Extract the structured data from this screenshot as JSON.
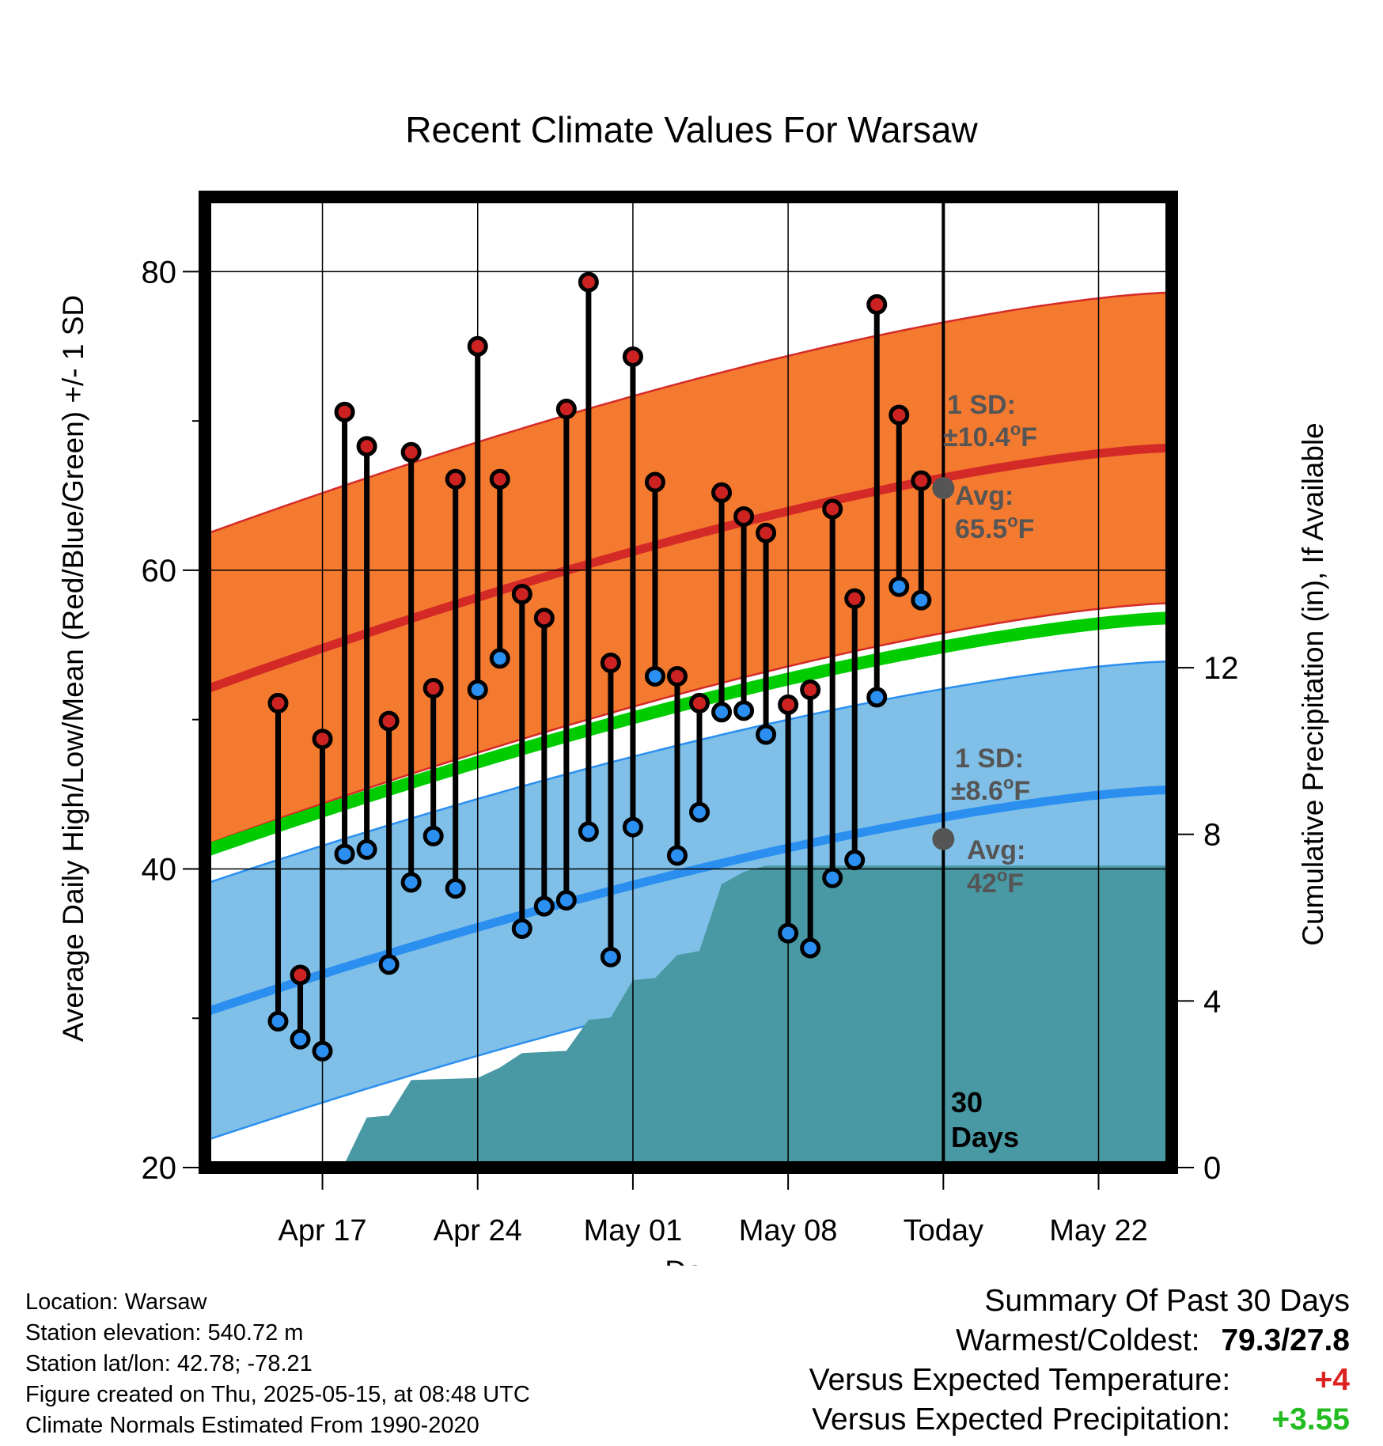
{
  "chart_data": {
    "type": "line",
    "title": "Recent Climate Values For Warsaw",
    "xlabel": "Day",
    "ylabel": "Average Daily High/Low/Mean (Red/Blue/Green) +/- 1 SD",
    "y2label": "Cumulative Precipitation (in), If Available",
    "x_range_days": [
      -33.3,
      10.3
    ],
    "ylim": [
      20,
      85
    ],
    "y2lim": [
      0,
      23.3
    ],
    "x_ticks": [
      {
        "day": -28,
        "label": "Apr 17"
      },
      {
        "day": -21,
        "label": "Apr 24"
      },
      {
        "day": -14,
        "label": "May 01"
      },
      {
        "day": -7,
        "label": "May 08"
      },
      {
        "day": 0,
        "label": "Today"
      },
      {
        "day": 7,
        "label": "May 22"
      }
    ],
    "y_ticks": [
      20,
      40,
      60,
      80
    ],
    "y_minor_ticks": [
      30,
      50,
      70
    ],
    "y2_ticks": [
      0,
      4,
      8,
      12
    ],
    "today_day": 0,
    "window_label": "30\nDays",
    "grid": true,
    "daily": [
      {
        "day": -30,
        "high": 51.1,
        "low": 29.8
      },
      {
        "day": -29,
        "high": 32.9,
        "low": 28.6
      },
      {
        "day": -28,
        "high": 48.7,
        "low": 27.8
      },
      {
        "day": -27,
        "high": 70.6,
        "low": 41.0
      },
      {
        "day": -26,
        "high": 68.3,
        "low": 41.3
      },
      {
        "day": -25,
        "high": 49.9,
        "low": 33.6
      },
      {
        "day": -24,
        "high": 67.9,
        "low": 39.1
      },
      {
        "day": -23,
        "high": 52.1,
        "low": 42.2
      },
      {
        "day": -22,
        "high": 66.1,
        "low": 38.7
      },
      {
        "day": -21,
        "high": 75.0,
        "low": 52.0
      },
      {
        "day": -20,
        "high": 66.1,
        "low": 54.1
      },
      {
        "day": -19,
        "high": 58.4,
        "low": 36.0
      },
      {
        "day": -18,
        "high": 56.8,
        "low": 37.5
      },
      {
        "day": -17,
        "high": 70.8,
        "low": 37.9
      },
      {
        "day": -16,
        "high": 79.3,
        "low": 42.5
      },
      {
        "day": -15,
        "high": 53.8,
        "low": 34.1
      },
      {
        "day": -14,
        "high": 74.3,
        "low": 42.8
      },
      {
        "day": -13,
        "high": 65.9,
        "low": 52.9
      },
      {
        "day": -12,
        "high": 52.9,
        "low": 40.9
      },
      {
        "day": -11,
        "high": 51.1,
        "low": 43.8
      },
      {
        "day": -10,
        "high": 65.2,
        "low": 50.5
      },
      {
        "day": -9,
        "high": 63.6,
        "low": 50.6
      },
      {
        "day": -8,
        "high": 62.5,
        "low": 49.0
      },
      {
        "day": -7,
        "high": 51.0,
        "low": 35.7
      },
      {
        "day": -6,
        "high": 52.0,
        "low": 34.7
      },
      {
        "day": -5,
        "high": 64.1,
        "low": 39.4
      },
      {
        "day": -4,
        "high": 58.1,
        "low": 40.6
      },
      {
        "day": -3,
        "high": 77.8,
        "low": 51.5
      },
      {
        "day": -2,
        "high": 70.4,
        "low": 58.9
      },
      {
        "day": -1,
        "high": 66.0,
        "low": 58.0
      }
    ],
    "normals": {
      "avg_high_start": 52.0,
      "avg_high_end": 68.2,
      "avg_low_start": 30.4,
      "avg_low_end": 45.3,
      "avg_mean_start": 41.2,
      "avg_mean_end": 56.8,
      "sd_high": 10.4,
      "sd_low": 8.6
    },
    "precip_cumulative": [
      {
        "day": -33,
        "v": 0.0
      },
      {
        "day": -30,
        "v": 0.0
      },
      {
        "day": -29,
        "v": 0.05
      },
      {
        "day": -28,
        "v": 0.1
      },
      {
        "day": -27,
        "v": 0.1
      },
      {
        "day": -26,
        "v": 1.2
      },
      {
        "day": -25,
        "v": 1.25
      },
      {
        "day": -24,
        "v": 2.1
      },
      {
        "day": -21,
        "v": 2.15
      },
      {
        "day": -20,
        "v": 2.4
      },
      {
        "day": -19,
        "v": 2.75
      },
      {
        "day": -17,
        "v": 2.8
      },
      {
        "day": -16,
        "v": 3.55
      },
      {
        "day": -15,
        "v": 3.6
      },
      {
        "day": -14,
        "v": 4.5
      },
      {
        "day": -13,
        "v": 4.55
      },
      {
        "day": -12,
        "v": 5.1
      },
      {
        "day": -11,
        "v": 5.2
      },
      {
        "day": -10,
        "v": 6.8
      },
      {
        "day": -9,
        "v": 7.1
      },
      {
        "day": -8,
        "v": 7.25
      },
      {
        "day": 10.3,
        "v": 7.25
      }
    ],
    "annotations": {
      "sd_high_label": "1 SD:",
      "sd_high_value": "±10.4",
      "sd_low_label": "1 SD:",
      "sd_low_value": "±8.6",
      "avg_label": "Avg:",
      "avg_high_value": "65.5",
      "avg_low_value": "42",
      "degree_unit": "o",
      "f_unit": "F",
      "today_avg_high": 65.5,
      "today_avg_low": 42.0
    },
    "colors": {
      "high_band": "#f47a30",
      "high_line": "#d42a27",
      "low_band": "#80c0e8",
      "low_line": "#2b8ff0",
      "mean_line": "#00cc00",
      "precip": "#4899a4",
      "high_marker": "#cc2222",
      "low_marker": "#2a8ff0",
      "annotation": "#555555",
      "avg_dot": "#555555"
    }
  },
  "footer": {
    "location": "Location: Warsaw",
    "elevation": "Station elevation: 540.72 m",
    "latlon": "Station lat/lon: 42.78; -78.21",
    "created": "Figure created on Thu, 2025-05-15, at 08:48 UTC",
    "normals": "Climate Normals Estimated From 1990-2020"
  },
  "summary": {
    "title": "Summary Of Past 30 Days",
    "warm_cold_label": "Warmest/Coldest:",
    "warm_cold_value": "79.3/27.8",
    "temp_label": "Versus Expected Temperature:",
    "temp_value": "+4",
    "temp_color": "#dd2222",
    "precip_label": "Versus Expected Precipitation:",
    "precip_value": "+3.55",
    "precip_color": "#22bb22"
  }
}
